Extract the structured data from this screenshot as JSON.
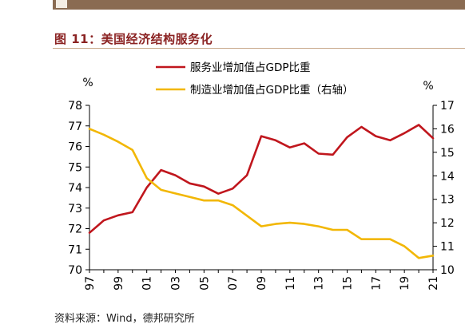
{
  "figure": {
    "title": "图 11：美国经济结构服务化",
    "source": "资料来源：Wind，德邦研究所"
  },
  "colors": {
    "accent": "#8b2323",
    "services": "#c0161d",
    "manufacturing": "#f2b705",
    "brand_block": "#8a6b52"
  },
  "chart_data": {
    "type": "line",
    "left_axis": {
      "unit": "%",
      "min": 70,
      "max": 78,
      "ticks": [
        70,
        71,
        72,
        73,
        74,
        75,
        76,
        77,
        78
      ]
    },
    "right_axis": {
      "unit": "%",
      "min": 10,
      "max": 17,
      "ticks": [
        10,
        11,
        12,
        13,
        14,
        15,
        16,
        17
      ]
    },
    "x": [
      1997,
      1998,
      1999,
      2000,
      2001,
      2002,
      2003,
      2004,
      2005,
      2006,
      2007,
      2008,
      2009,
      2010,
      2011,
      2012,
      2013,
      2014,
      2015,
      2016,
      2017,
      2018,
      2019,
      2020,
      2021
    ],
    "x_tick_labels": [
      "97",
      "99",
      "01",
      "03",
      "05",
      "07",
      "09",
      "11",
      "13",
      "15",
      "17",
      "19",
      "21"
    ],
    "x_tick_years": [
      1997,
      1999,
      2001,
      2003,
      2005,
      2007,
      2009,
      2011,
      2013,
      2015,
      2017,
      2019,
      2021
    ],
    "series": [
      {
        "name": "服务业增加值占GDP比重",
        "axis": "left",
        "color": "#c0161d",
        "values": [
          71.8,
          72.4,
          72.65,
          72.8,
          74.0,
          74.85,
          74.6,
          74.2,
          74.05,
          73.7,
          73.95,
          74.6,
          76.5,
          76.3,
          75.95,
          76.15,
          75.65,
          75.6,
          76.45,
          76.95,
          76.5,
          76.3,
          76.65,
          77.05,
          76.4
        ]
      },
      {
        "name": "制造业增加值占GDP比重（右轴）",
        "axis": "right",
        "color": "#f2b705",
        "values": [
          16.0,
          15.75,
          15.45,
          15.1,
          13.9,
          13.4,
          13.25,
          13.1,
          12.95,
          12.95,
          12.75,
          12.3,
          11.85,
          11.95,
          12.0,
          11.95,
          11.85,
          11.7,
          11.7,
          11.3,
          11.3,
          11.3,
          11.0,
          10.5,
          10.6
        ]
      }
    ]
  }
}
